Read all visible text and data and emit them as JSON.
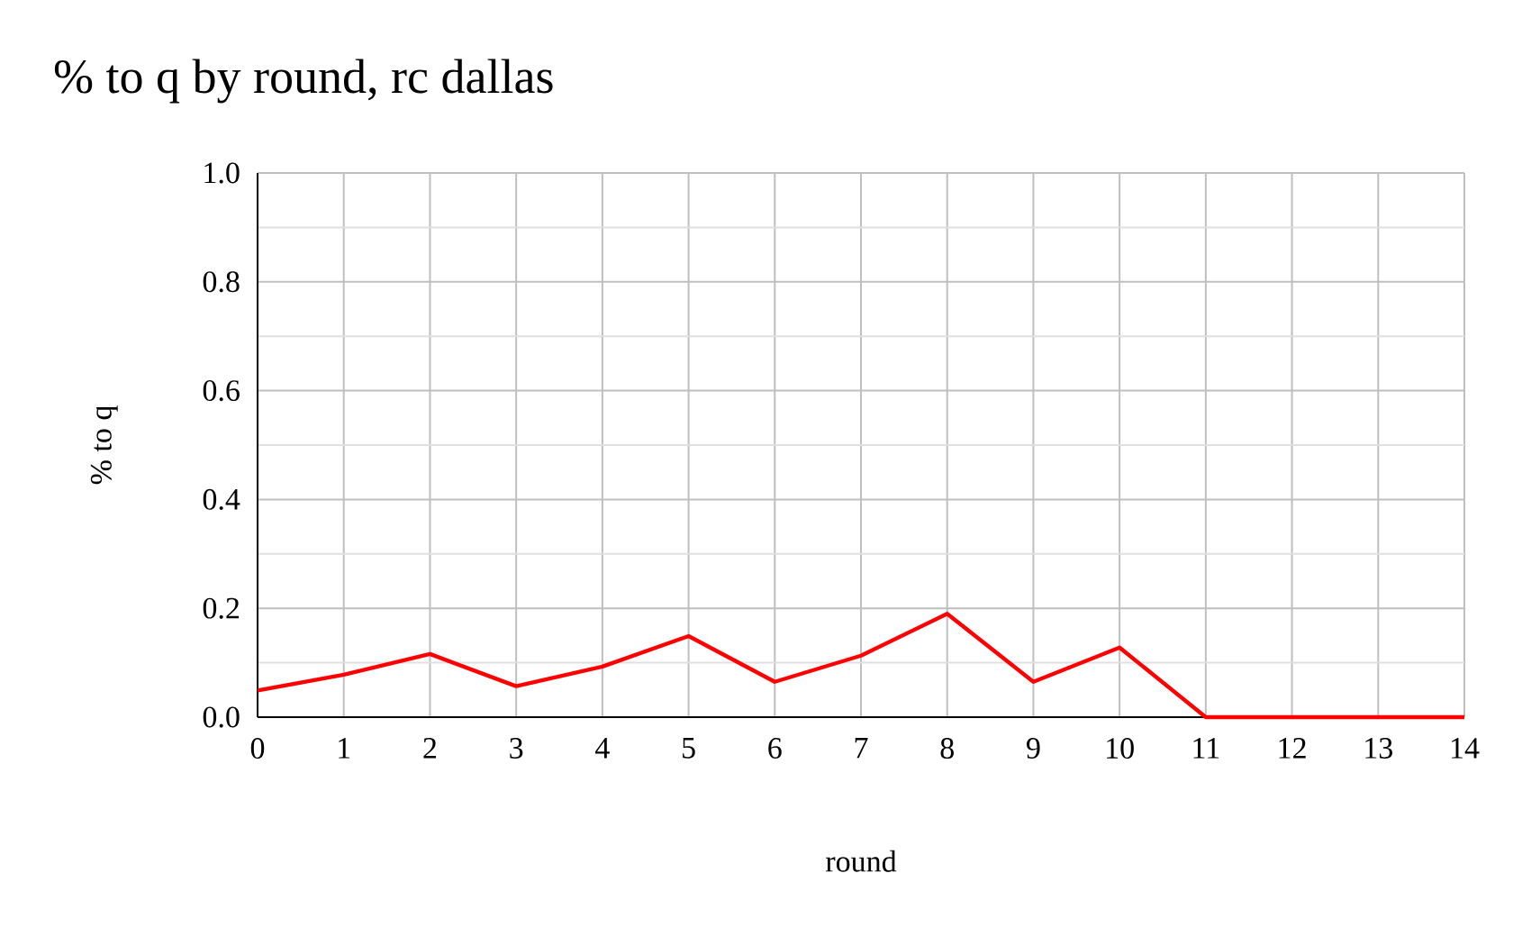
{
  "chart_data": {
    "type": "line",
    "title": "% to q by round, rc dallas",
    "xlabel": "round",
    "ylabel": "% to q",
    "x": [
      0,
      1,
      2,
      3,
      4,
      5,
      6,
      7,
      8,
      9,
      10,
      11,
      12,
      13,
      14
    ],
    "series": [
      {
        "color": "#ff0000",
        "values": [
          0.049,
          0.078,
          0.116,
          0.057,
          0.093,
          0.149,
          0.065,
          0.113,
          0.19,
          0.065,
          0.128,
          0,
          0,
          0,
          0
        ]
      }
    ],
    "xlim": [
      0,
      14
    ],
    "xticks": [
      0,
      1,
      2,
      3,
      4,
      5,
      6,
      7,
      8,
      9,
      10,
      11,
      12,
      13,
      14
    ],
    "ylim": [
      0,
      1
    ],
    "yticks": [
      {
        "value": 0,
        "label": "0.0"
      },
      0.2,
      0.4,
      0.6,
      0.8,
      {
        "value": 1,
        "label": "1.0"
      }
    ],
    "grid": true,
    "marker": "none",
    "line_style": "solid"
  }
}
